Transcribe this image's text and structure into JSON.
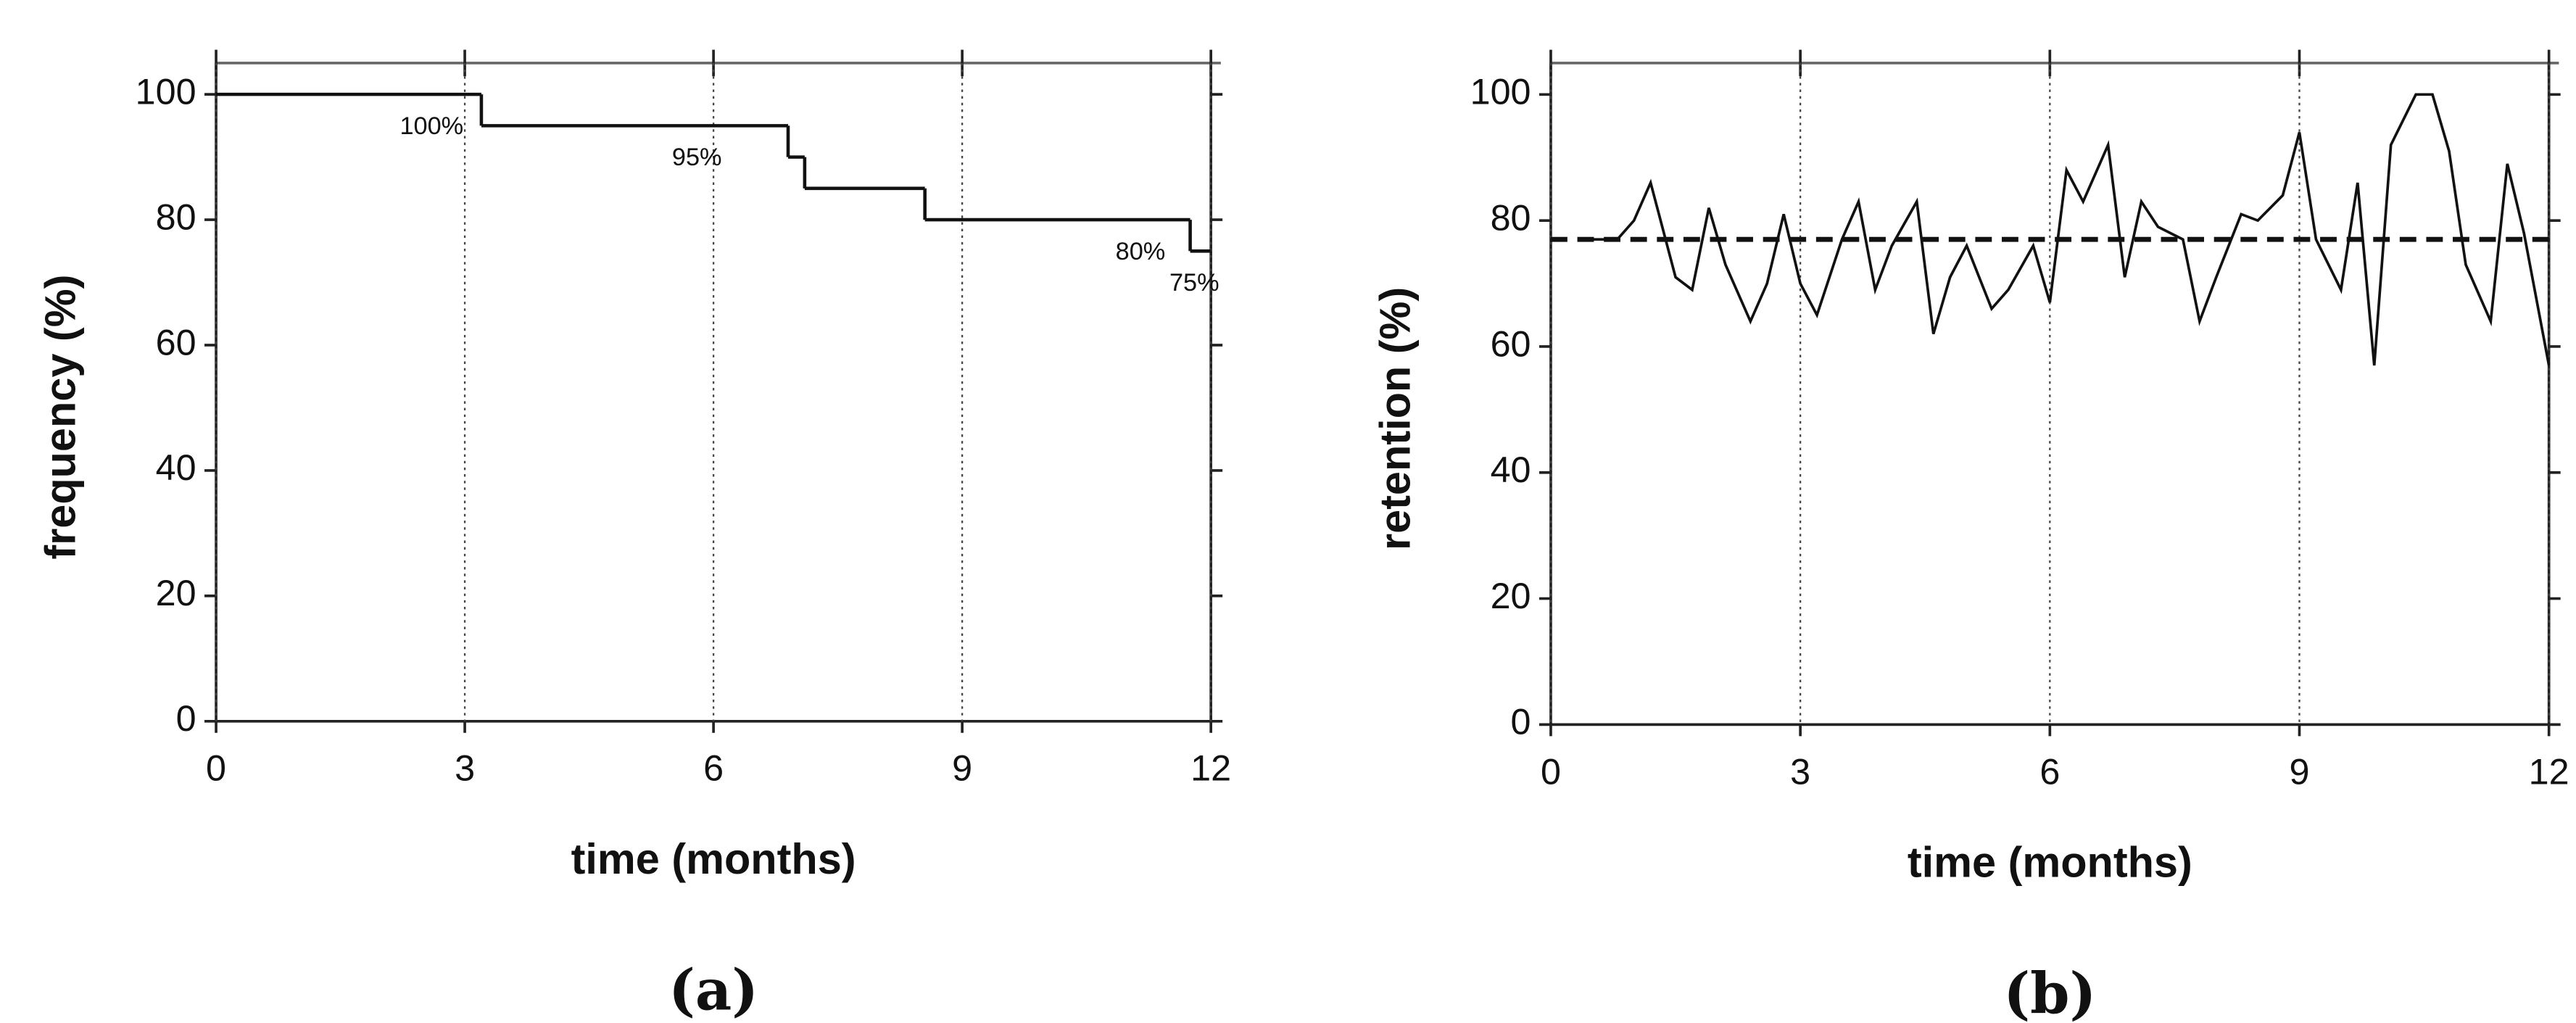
{
  "chart_data": [
    {
      "type": "step",
      "label": "(a)",
      "x_label": "time (months)",
      "y_label": "frequency (%)",
      "x": [
        0,
        3.2,
        6.9,
        7.1,
        8.55,
        11.75
      ],
      "values": [
        100,
        95,
        90,
        85,
        80,
        75
      ],
      "value_labels": [
        "100%",
        "95%",
        null,
        null,
        "80%",
        "75%"
      ],
      "color": "#111111",
      "xlim": [
        0,
        12
      ],
      "xticks": [
        0,
        3,
        6,
        9,
        12
      ],
      "ylim": [
        0,
        105
      ],
      "yticks": [
        0,
        20,
        40,
        60,
        80,
        100
      ],
      "grid": true
    },
    {
      "type": "line",
      "label": "(b)",
      "x_label": "time (months)",
      "y_label": "retention (%)",
      "x": [
        0.5,
        0.8,
        1.0,
        1.2,
        1.5,
        1.7,
        1.9,
        2.1,
        2.4,
        2.6,
        2.8,
        3.0,
        3.2,
        3.5,
        3.7,
        3.9,
        4.1,
        4.4,
        4.6,
        4.8,
        5.0,
        5.3,
        5.5,
        5.8,
        6.0,
        6.2,
        6.4,
        6.7,
        6.9,
        7.1,
        7.3,
        7.6,
        7.8,
        8.0,
        8.3,
        8.5,
        8.8,
        9.0,
        9.2,
        9.5,
        9.7,
        9.9,
        10.1,
        10.4,
        10.6,
        10.8,
        11.0,
        11.3,
        11.5,
        11.7,
        12.0
      ],
      "values": [
        77,
        77,
        80,
        86,
        71,
        69,
        82,
        73,
        64,
        70,
        81,
        70,
        65,
        77,
        83,
        69,
        76,
        83,
        62,
        71,
        76,
        66,
        69,
        76,
        67,
        88,
        83,
        92,
        71,
        83,
        79,
        77,
        64,
        71,
        81,
        80,
        84,
        94,
        77,
        69,
        86,
        57,
        92,
        100,
        100,
        91,
        73,
        64,
        89,
        78,
        57
      ],
      "mean_line": 77,
      "color": "#111111",
      "xlim": [
        0,
        12
      ],
      "xticks": [
        0,
        3,
        6,
        9,
        12
      ],
      "ylim": [
        0,
        105
      ],
      "yticks": [
        0,
        20,
        40,
        60,
        80,
        100
      ],
      "grid": true
    }
  ]
}
